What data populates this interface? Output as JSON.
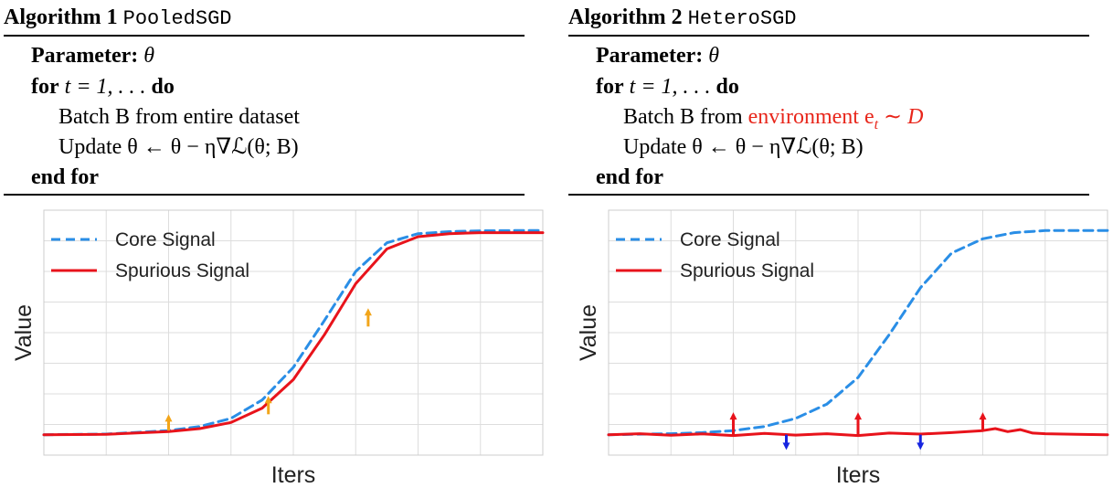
{
  "algorithms": [
    {
      "label": "Algorithm 1",
      "name": "PooledSGD",
      "param_kw": "Parameter:",
      "param_sym": "θ",
      "for_kw": "for",
      "for_expr": "t = 1, . . .",
      "do_kw": "do",
      "batch_text": "Batch B from entire dataset",
      "update_text": "Update θ ← θ − η∇ℒ(θ; B)",
      "end_kw": "end for"
    },
    {
      "label": "Algorithm 2",
      "name": "HeteroSGD",
      "param_kw": "Parameter:",
      "param_sym": "θ",
      "for_kw": "for",
      "for_expr": "t = 1, . . .",
      "do_kw": "do",
      "batch_prefix": "Batch B from ",
      "batch_highlight": "environment e",
      "batch_sub": "t",
      "batch_tail": " ∼ D",
      "update_text": "Update θ ← θ − η∇ℒ(θ; B)",
      "end_kw": "end for"
    }
  ],
  "chart_data": [
    {
      "type": "line",
      "xlabel": "Iters",
      "ylabel": "Value",
      "xlim": [
        0,
        8
      ],
      "ylim": [
        -0.1,
        1.1
      ],
      "grid": true,
      "legend": "top-left",
      "series": [
        {
          "name": "Core Signal",
          "color": "#2a8ee6",
          "dash": true,
          "x": [
            0,
            1,
            2,
            2.5,
            3,
            3.5,
            4,
            4.5,
            5,
            5.5,
            6,
            6.5,
            7,
            7.5,
            8
          ],
          "y": [
            0,
            0.003,
            0.02,
            0.04,
            0.08,
            0.17,
            0.33,
            0.56,
            0.8,
            0.94,
            0.985,
            0.995,
            0.999,
            1.0,
            1.0
          ]
        },
        {
          "name": "Spurious Signal",
          "color": "#e8131b",
          "dash": false,
          "x": [
            0,
            1,
            2,
            2.5,
            3,
            3.5,
            4,
            4.5,
            5,
            5.5,
            6,
            6.5,
            7,
            7.5,
            8
          ],
          "y": [
            0,
            0.002,
            0.015,
            0.03,
            0.06,
            0.13,
            0.27,
            0.49,
            0.74,
            0.91,
            0.97,
            0.985,
            0.99,
            0.99,
            0.99
          ]
        }
      ],
      "arrows": [
        {
          "x": 2.0,
          "y_from": 0.02,
          "y_to": 0.1,
          "color": "#f2a51a"
        },
        {
          "x": 3.6,
          "y_from": 0.1,
          "y_to": 0.19,
          "color": "#f2a51a"
        },
        {
          "x": 5.2,
          "y_from": 0.53,
          "y_to": 0.62,
          "color": "#f2a51a"
        }
      ]
    },
    {
      "type": "line",
      "xlabel": "Iters",
      "ylabel": "Value",
      "xlim": [
        0,
        8
      ],
      "ylim": [
        -0.1,
        1.1
      ],
      "grid": true,
      "legend": "top-left",
      "series": [
        {
          "name": "Core Signal",
          "color": "#2a8ee6",
          "dash": true,
          "x": [
            0,
            1,
            1.5,
            2,
            2.5,
            3,
            3.5,
            4,
            4.5,
            5,
            5.5,
            6,
            6.5,
            7,
            7.5,
            8
          ],
          "y": [
            0,
            0.005,
            0.01,
            0.02,
            0.04,
            0.08,
            0.15,
            0.28,
            0.49,
            0.72,
            0.89,
            0.96,
            0.99,
            1.0,
            1.0,
            1.0
          ]
        },
        {
          "name": "Spurious Signal",
          "color": "#e8131b",
          "dash": false,
          "x": [
            0,
            0.5,
            1,
            1.5,
            2,
            2.5,
            3,
            3.5,
            4,
            4.5,
            5,
            5.5,
            6,
            6.2,
            6.4,
            6.6,
            6.8,
            7,
            7.5,
            8
          ],
          "y": [
            0,
            0.005,
            -0.003,
            0.004,
            -0.004,
            0.006,
            -0.002,
            0.005,
            -0.004,
            0.008,
            0.003,
            0.01,
            0.02,
            0.03,
            0.015,
            0.025,
            0.008,
            0.005,
            0.002,
            0.0
          ]
        }
      ],
      "arrows": [
        {
          "x": 2.0,
          "y_from": 0.0,
          "y_to": 0.11,
          "color": "#e8131b"
        },
        {
          "x": 2.85,
          "y_from": 0.0,
          "y_to": -0.075,
          "color": "#1624e0"
        },
        {
          "x": 4.0,
          "y_from": 0.0,
          "y_to": 0.11,
          "color": "#e8131b"
        },
        {
          "x": 5.0,
          "y_from": 0.0,
          "y_to": -0.075,
          "color": "#1624e0"
        },
        {
          "x": 6.0,
          "y_from": 0.02,
          "y_to": 0.11,
          "color": "#e8131b"
        }
      ]
    }
  ]
}
